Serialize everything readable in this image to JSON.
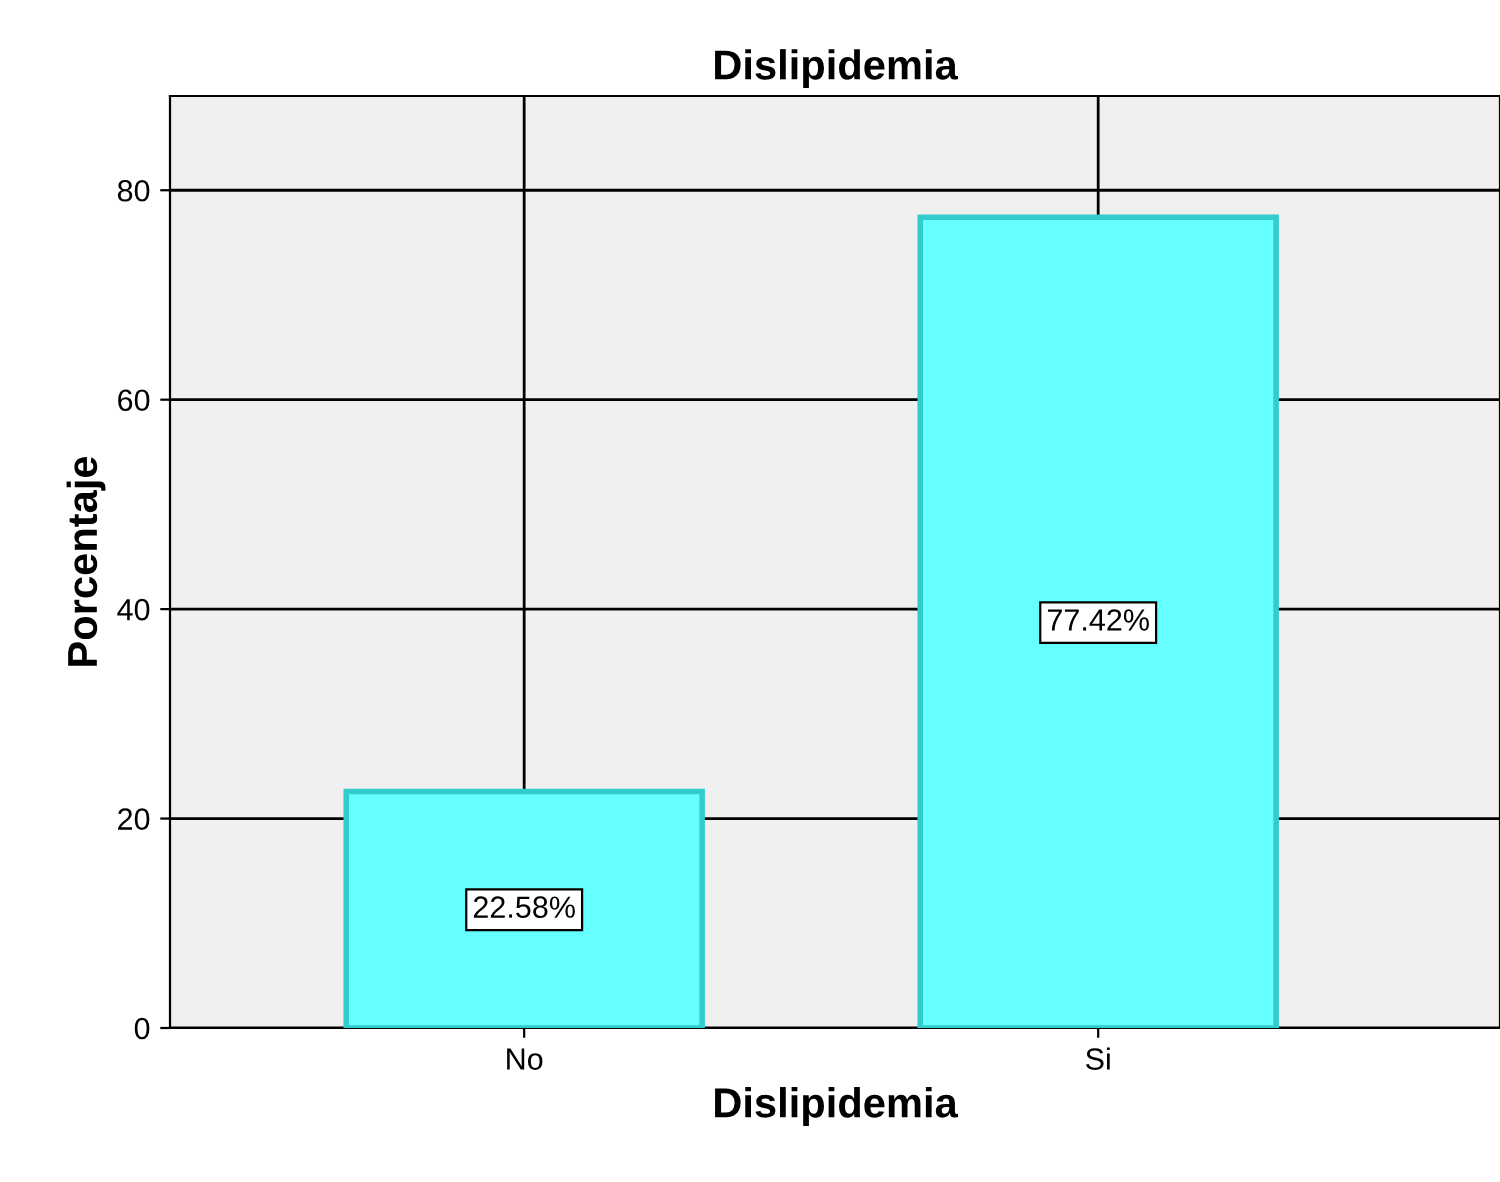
{
  "chart_data": {
    "type": "bar",
    "title": "Dislipidemia",
    "xlabel": "Dislipidemia",
    "ylabel": "Porcentaje",
    "categories": [
      "No",
      "Si"
    ],
    "values": [
      22.58,
      77.42
    ],
    "value_labels": [
      "22.58%",
      "77.42%"
    ],
    "color": "#66ffff",
    "ylim": [
      0,
      89
    ],
    "yticks": [
      0,
      20,
      40,
      60,
      80
    ],
    "grid": true
  }
}
